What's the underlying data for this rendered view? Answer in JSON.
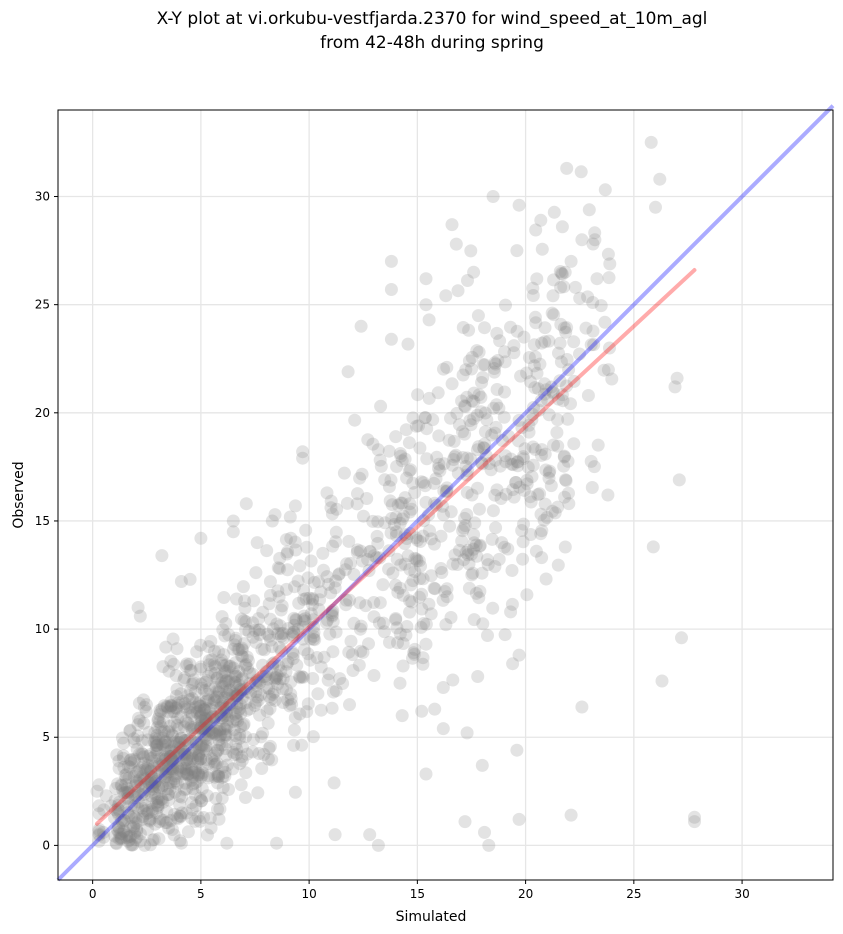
{
  "chart_data": {
    "type": "scatter",
    "title_line1": "X-Y plot at vi.orkubu-vestfjarda.2370 for wind_speed_at_10m_agl",
    "title_line2": "from 42-48h during spring",
    "xlabel": "Simulated",
    "ylabel": "Observed",
    "xlim": [
      -1.6,
      34.2
    ],
    "ylim": [
      -1.6,
      34.0
    ],
    "xticks": [
      0,
      5,
      10,
      15,
      20,
      25,
      30
    ],
    "yticks": [
      0,
      5,
      10,
      15,
      20,
      25,
      30
    ],
    "grid": true,
    "point_color": "#808080",
    "identity_line": {
      "color": "#0000ff",
      "from": [
        -1.6,
        -1.6
      ],
      "to": [
        34.2,
        34.2
      ]
    },
    "fit_line": {
      "color": "#ff0000",
      "from": [
        0.2,
        1.0
      ],
      "to": [
        27.8,
        26.6
      ]
    },
    "notable_points": [
      [
        25.8,
        32.5
      ],
      [
        21.9,
        31.3
      ],
      [
        26.2,
        30.8
      ],
      [
        18.5,
        30.0
      ],
      [
        19.7,
        29.6
      ],
      [
        26.0,
        29.5
      ],
      [
        20.7,
        28.9
      ],
      [
        21.7,
        28.6
      ],
      [
        16.6,
        28.7
      ],
      [
        22.6,
        28.0
      ],
      [
        23.2,
        28.0
      ],
      [
        16.8,
        27.8
      ],
      [
        19.6,
        27.5
      ],
      [
        13.8,
        27.0
      ],
      [
        22.1,
        27.0
      ],
      [
        23.3,
        26.2
      ],
      [
        15.4,
        26.2
      ],
      [
        17.6,
        26.5
      ],
      [
        13.8,
        25.7
      ],
      [
        22.3,
        25.8
      ],
      [
        22.5,
        25.3
      ],
      [
        23.1,
        25.1
      ],
      [
        15.4,
        25.0
      ],
      [
        12.4,
        24.0
      ],
      [
        13.8,
        23.4
      ],
      [
        11.8,
        21.9
      ],
      [
        27.0,
        21.6
      ],
      [
        26.9,
        21.2
      ],
      [
        22.9,
        20.8
      ],
      [
        13.3,
        20.3
      ],
      [
        14.0,
        18.9
      ],
      [
        9.7,
        18.2
      ],
      [
        9.7,
        17.9
      ],
      [
        23.8,
        16.2
      ],
      [
        27.1,
        16.9
      ],
      [
        21.8,
        16.1
      ],
      [
        20.5,
        13.6
      ],
      [
        25.9,
        13.8
      ],
      [
        13.0,
        13.4
      ],
      [
        27.2,
        9.6
      ],
      [
        26.3,
        7.6
      ],
      [
        22.6,
        6.4
      ],
      [
        19.7,
        8.8
      ],
      [
        19.4,
        8.4
      ],
      [
        15.4,
        9.3
      ],
      [
        14.2,
        7.5
      ],
      [
        15.2,
        6.2
      ],
      [
        14.3,
        6.0
      ],
      [
        15.8,
        6.3
      ],
      [
        16.2,
        7.3
      ],
      [
        16.2,
        5.4
      ],
      [
        17.3,
        5.2
      ],
      [
        19.6,
        4.4
      ],
      [
        18.0,
        3.7
      ],
      [
        15.4,
        3.3
      ],
      [
        17.2,
        1.1
      ],
      [
        18.1,
        0.6
      ],
      [
        18.3,
        0.0
      ],
      [
        19.7,
        1.2
      ],
      [
        22.1,
        1.4
      ],
      [
        27.8,
        1.3
      ],
      [
        27.8,
        1.1
      ],
      [
        11.2,
        0.5
      ],
      [
        12.8,
        0.5
      ],
      [
        13.2,
        0.0
      ],
      [
        8.5,
        0.1
      ],
      [
        6.2,
        0.1
      ],
      [
        4.1,
        0.1
      ],
      [
        2.4,
        0.0
      ],
      [
        0.5,
        0.6
      ],
      [
        0.2,
        2.5
      ],
      [
        0.3,
        2.8
      ],
      [
        3.2,
        13.4
      ],
      [
        4.1,
        12.2
      ],
      [
        4.5,
        12.3
      ],
      [
        2.1,
        11.0
      ],
      [
        2.2,
        10.6
      ],
      [
        5.0,
        14.2
      ],
      [
        6.5,
        14.5
      ],
      [
        6.5,
        15.0
      ],
      [
        7.1,
        15.8
      ],
      [
        7.6,
        14.0
      ],
      [
        8.3,
        15.0
      ]
    ]
  }
}
